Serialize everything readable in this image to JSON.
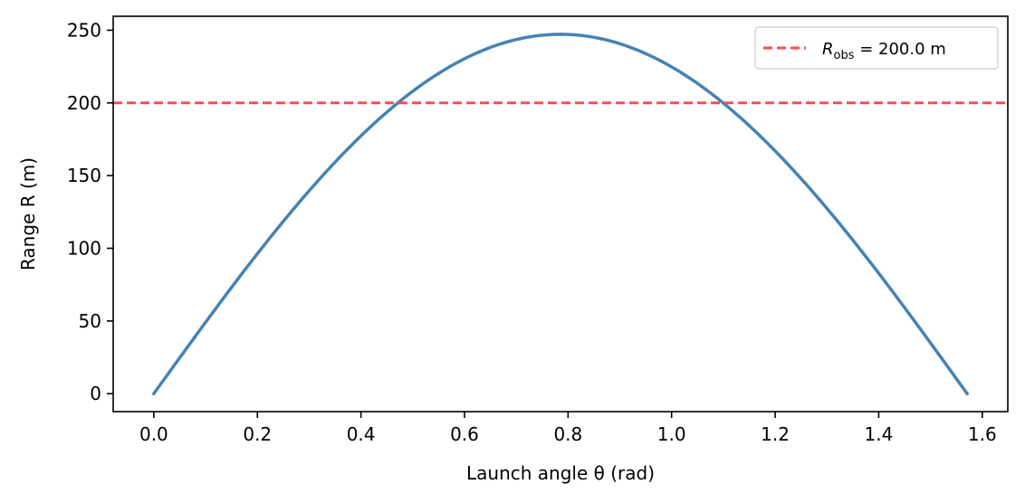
{
  "chart_data": {
    "type": "line",
    "xlabel": "Launch angle θ (rad)",
    "ylabel": "Range R (m)",
    "xlim": [
      -0.0785,
      1.6493
    ],
    "ylim": [
      -12.36,
      259.6
    ],
    "x_ticks": [
      0.0,
      0.2,
      0.4,
      0.6,
      0.8,
      1.0,
      1.2,
      1.4,
      1.6
    ],
    "x_tick_labels": [
      "0.0",
      "0.2",
      "0.4",
      "0.6",
      "0.8",
      "1.0",
      "1.2",
      "1.4",
      "1.6"
    ],
    "y_ticks": [
      0,
      50,
      100,
      150,
      200,
      250
    ],
    "y_tick_labels": [
      "0",
      "50",
      "100",
      "150",
      "200",
      "250"
    ],
    "grid": false,
    "legend_position": "top-right",
    "series": [
      {
        "color": "#4682b4",
        "style": "solid",
        "x": [
          0.0,
          0.0785,
          0.1571,
          0.2356,
          0.3142,
          0.3927,
          0.4712,
          0.5498,
          0.6283,
          0.7069,
          0.7854,
          0.8639,
          0.9425,
          1.021,
          1.0996,
          1.1781,
          1.2566,
          1.3352,
          1.4137,
          1.4923,
          1.5708
        ],
        "y": [
          0.0,
          38.6,
          76.3,
          112.1,
          145.3,
          174.8,
          200.0,
          220.3,
          235.1,
          244.1,
          247.2,
          244.1,
          235.1,
          220.3,
          200.0,
          174.8,
          145.3,
          112.1,
          76.3,
          38.6,
          0.0
        ]
      },
      {
        "name_prefix": "R",
        "name_subscript": "obs",
        "name_suffix": " = 200.0 m",
        "color": "#ff4d4d",
        "style": "dashed",
        "y_constant": 200.0
      }
    ]
  }
}
